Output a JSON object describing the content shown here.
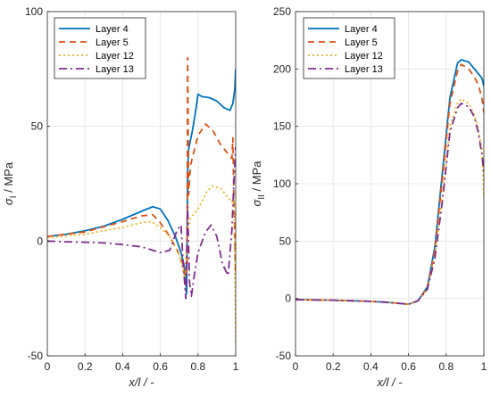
{
  "figure": {
    "background": "#ffffff"
  },
  "chart_data": [
    {
      "type": "line",
      "xlabel": "x/l / -",
      "ylabel": "σ_I / MPa",
      "ylabel_symbol": "σ",
      "ylabel_subscript": "I",
      "ylabel_unit": " / MPa",
      "xlim": [
        0,
        1
      ],
      "ylim": [
        -50,
        100
      ],
      "xticks": [
        "0",
        "0.2",
        "0.4",
        "0.6",
        "0.8",
        "1"
      ],
      "yticks": [
        "-50",
        "0",
        "50",
        "100"
      ],
      "grid": true,
      "legend_position": "top-left",
      "series": [
        {
          "name": "Layer 4",
          "color": "#0072BD",
          "dash": "solid",
          "points": [
            [
              0,
              2
            ],
            [
              0.1,
              3
            ],
            [
              0.2,
              4.5
            ],
            [
              0.3,
              6.5
            ],
            [
              0.4,
              9.5
            ],
            [
              0.5,
              13
            ],
            [
              0.56,
              15
            ],
            [
              0.6,
              14
            ],
            [
              0.64,
              9
            ],
            [
              0.68,
              2
            ],
            [
              0.71,
              -5
            ],
            [
              0.73,
              -12
            ],
            [
              0.74,
              -23
            ],
            [
              0.745,
              30
            ],
            [
              0.75,
              40
            ],
            [
              0.77,
              48
            ],
            [
              0.79,
              58
            ],
            [
              0.8,
              64
            ],
            [
              0.82,
              63
            ],
            [
              0.86,
              62.5
            ],
            [
              0.9,
              61
            ],
            [
              0.94,
              58
            ],
            [
              0.97,
              57
            ],
            [
              0.985,
              60
            ],
            [
              0.995,
              66
            ],
            [
              1,
              75
            ]
          ]
        },
        {
          "name": "Layer 5",
          "color": "#D95319",
          "dash": "7,5",
          "points": [
            [
              0,
              2
            ],
            [
              0.2,
              4
            ],
            [
              0.4,
              8.5
            ],
            [
              0.5,
              11
            ],
            [
              0.56,
              11.5
            ],
            [
              0.6,
              8
            ],
            [
              0.65,
              2
            ],
            [
              0.69,
              -4
            ],
            [
              0.72,
              -10
            ],
            [
              0.735,
              -18
            ],
            [
              0.742,
              -10
            ],
            [
              0.745,
              80
            ],
            [
              0.75,
              20
            ],
            [
              0.76,
              33
            ],
            [
              0.8,
              46
            ],
            [
              0.84,
              51
            ],
            [
              0.88,
              48
            ],
            [
              0.92,
              42
            ],
            [
              0.96,
              38
            ],
            [
              0.98,
              36
            ],
            [
              0.985,
              45
            ],
            [
              0.99,
              20
            ],
            [
              1,
              -15
            ]
          ]
        },
        {
          "name": "Layer 12",
          "color": "#EDB120",
          "dash": "2,3",
          "points": [
            [
              0,
              1.5
            ],
            [
              0.2,
              3
            ],
            [
              0.4,
              6
            ],
            [
              0.5,
              8
            ],
            [
              0.55,
              8.5
            ],
            [
              0.6,
              6
            ],
            [
              0.65,
              2
            ],
            [
              0.7,
              -6
            ],
            [
              0.73,
              -16
            ],
            [
              0.745,
              5
            ],
            [
              0.76,
              10
            ],
            [
              0.8,
              14
            ],
            [
              0.85,
              22
            ],
            [
              0.88,
              24
            ],
            [
              0.92,
              23
            ],
            [
              0.96,
              19
            ],
            [
              0.98,
              17
            ],
            [
              0.99,
              20
            ],
            [
              0.995,
              -10
            ],
            [
              1,
              -44
            ]
          ]
        },
        {
          "name": "Layer 13",
          "color": "#7E2F8E",
          "dash": "9,4,2,4",
          "points": [
            [
              0,
              0
            ],
            [
              0.1,
              -0.3
            ],
            [
              0.2,
              -0.5
            ],
            [
              0.3,
              -0.8
            ],
            [
              0.4,
              -1.5
            ],
            [
              0.5,
              -2.5
            ],
            [
              0.6,
              -5
            ],
            [
              0.65,
              -4
            ],
            [
              0.69,
              5
            ],
            [
              0.71,
              7
            ],
            [
              0.72,
              -8
            ],
            [
              0.735,
              -25
            ],
            [
              0.745,
              15
            ],
            [
              0.755,
              -18
            ],
            [
              0.765,
              -24
            ],
            [
              0.78,
              -15
            ],
            [
              0.8,
              -5
            ],
            [
              0.84,
              4
            ],
            [
              0.87,
              7
            ],
            [
              0.9,
              2
            ],
            [
              0.93,
              -10
            ],
            [
              0.96,
              -15
            ],
            [
              0.98,
              5
            ],
            [
              0.99,
              25
            ],
            [
              1,
              41
            ]
          ]
        }
      ]
    },
    {
      "type": "line",
      "xlabel": "x/l / -",
      "ylabel": "σ_II / MPa",
      "ylabel_symbol": "σ",
      "ylabel_subscript": "II",
      "ylabel_unit": " / MPa",
      "xlim": [
        0,
        1
      ],
      "ylim": [
        -50,
        250
      ],
      "xticks": [
        "0",
        "0.2",
        "0.4",
        "0.6",
        "0.8",
        "1"
      ],
      "yticks": [
        "-50",
        "0",
        "50",
        "100",
        "150",
        "200",
        "250"
      ],
      "grid": true,
      "legend_position": "top-left",
      "series": [
        {
          "name": "Layer 4",
          "color": "#0072BD",
          "dash": "solid",
          "points": [
            [
              0,
              -1
            ],
            [
              0.2,
              -1.5
            ],
            [
              0.4,
              -2.5
            ],
            [
              0.5,
              -3.5
            ],
            [
              0.6,
              -5
            ],
            [
              0.65,
              -2
            ],
            [
              0.7,
              10
            ],
            [
              0.74,
              45
            ],
            [
              0.78,
              110
            ],
            [
              0.82,
              175
            ],
            [
              0.86,
              205
            ],
            [
              0.88,
              208
            ],
            [
              0.92,
              206
            ],
            [
              0.95,
              200
            ],
            [
              0.97,
              196
            ],
            [
              0.99,
              192
            ],
            [
              1,
              185
            ]
          ]
        },
        {
          "name": "Layer 5",
          "color": "#D95319",
          "dash": "7,5",
          "points": [
            [
              0,
              -1
            ],
            [
              0.2,
              -1.5
            ],
            [
              0.4,
              -2.5
            ],
            [
              0.5,
              -3.5
            ],
            [
              0.6,
              -5
            ],
            [
              0.65,
              -2
            ],
            [
              0.7,
              9
            ],
            [
              0.74,
              42
            ],
            [
              0.78,
              105
            ],
            [
              0.82,
              170
            ],
            [
              0.86,
              198
            ],
            [
              0.88,
              204
            ],
            [
              0.92,
              200
            ],
            [
              0.95,
              193
            ],
            [
              0.97,
              186
            ],
            [
              0.99,
              175
            ],
            [
              1,
              162
            ]
          ]
        },
        {
          "name": "Layer 12",
          "color": "#EDB120",
          "dash": "2,3",
          "points": [
            [
              0,
              -1
            ],
            [
              0.2,
              -1.5
            ],
            [
              0.4,
              -2.5
            ],
            [
              0.5,
              -3.5
            ],
            [
              0.6,
              -5
            ],
            [
              0.65,
              -2
            ],
            [
              0.7,
              8
            ],
            [
              0.74,
              38
            ],
            [
              0.78,
              90
            ],
            [
              0.82,
              150
            ],
            [
              0.86,
              170
            ],
            [
              0.88,
              174
            ],
            [
              0.92,
              170
            ],
            [
              0.95,
              160
            ],
            [
              0.97,
              148
            ],
            [
              0.99,
              130
            ],
            [
              1,
              88
            ]
          ]
        },
        {
          "name": "Layer 13",
          "color": "#7E2F8E",
          "dash": "9,4,2,4",
          "points": [
            [
              0,
              -1
            ],
            [
              0.2,
              -1.5
            ],
            [
              0.4,
              -2.5
            ],
            [
              0.5,
              -3.5
            ],
            [
              0.6,
              -5
            ],
            [
              0.65,
              -2
            ],
            [
              0.7,
              8
            ],
            [
              0.74,
              35
            ],
            [
              0.78,
              85
            ],
            [
              0.82,
              145
            ],
            [
              0.86,
              166
            ],
            [
              0.88,
              170
            ],
            [
              0.92,
              167
            ],
            [
              0.95,
              158
            ],
            [
              0.97,
              145
            ],
            [
              0.99,
              125
            ],
            [
              1,
              110
            ]
          ]
        }
      ]
    }
  ]
}
